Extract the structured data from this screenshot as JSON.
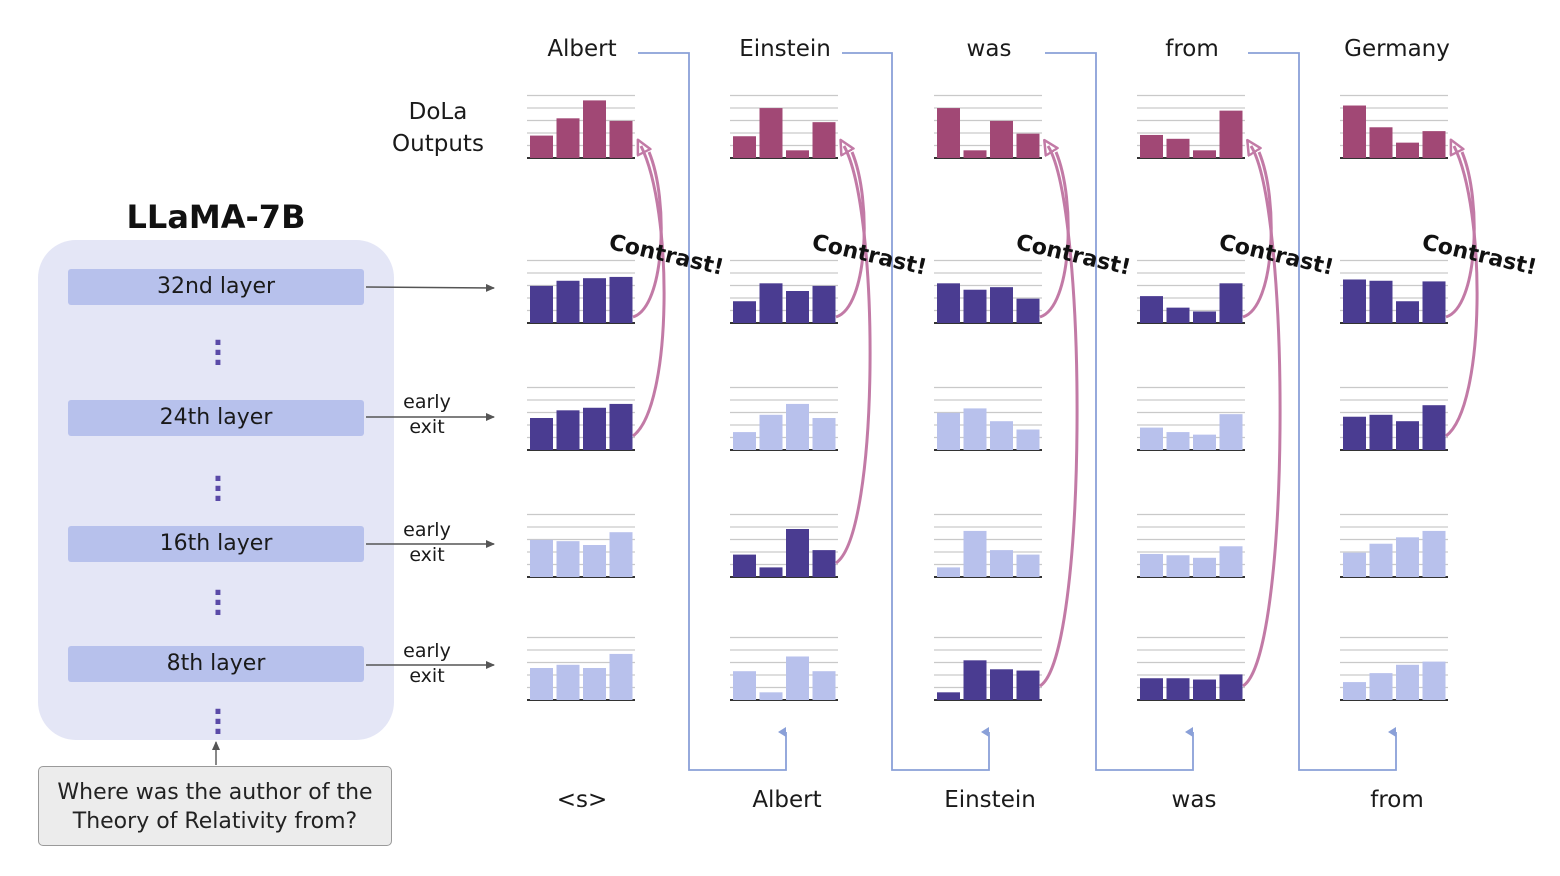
{
  "model": {
    "title": "LLaMA-7B",
    "layers": [
      "32nd layer",
      "24th layer",
      "16th layer",
      "8th layer"
    ]
  },
  "question": {
    "line1": "Where was the author of the",
    "line2": "Theory of Relativity from?"
  },
  "early_exit_label": {
    "line1": "early",
    "line2": "exit"
  },
  "dola_label": {
    "line1": "DoLa",
    "line2": "Outputs"
  },
  "output_tokens": [
    "Albert",
    "Einstein",
    "was",
    "from",
    "Germany"
  ],
  "input_tokens": [
    "<s>",
    "Albert",
    "Einstein",
    "was",
    "from"
  ],
  "contrast_label": "Contrast!",
  "colors": {
    "output_bar": "#a14875",
    "mature_bar": "#4a3c91",
    "premature_selected_bar": "#4a3c91",
    "faded_bar": "#b8c1ec",
    "arrow": "#c27aa6",
    "panel": "#e4e6f6",
    "layer_box": "#b7c1ec"
  },
  "chart_data": {
    "type": "bar",
    "note_rows": [
      "DoLa output",
      "32nd layer",
      "24th layer",
      "16th layer",
      "8th layer"
    ],
    "columns": [
      {
        "token": "Albert",
        "contrast_from_layer": "24th layer",
        "rows": {
          "output": [
            0.35,
            0.62,
            0.9,
            0.58
          ],
          "layer32": [
            0.58,
            0.66,
            0.7,
            0.72
          ],
          "layer24": [
            0.5,
            0.62,
            0.66,
            0.72
          ],
          "layer16": [
            0.58,
            0.56,
            0.5,
            0.7
          ],
          "layer8": [
            0.5,
            0.55,
            0.5,
            0.72
          ]
        }
      },
      {
        "token": "Einstein",
        "contrast_from_layer": "16th layer",
        "rows": {
          "output": [
            0.34,
            0.78,
            0.12,
            0.56
          ],
          "layer32": [
            0.34,
            0.62,
            0.5,
            0.58
          ],
          "layer24": [
            0.28,
            0.55,
            0.72,
            0.5
          ],
          "layer16": [
            0.35,
            0.15,
            0.75,
            0.42
          ],
          "layer8": [
            0.45,
            0.12,
            0.68,
            0.45
          ]
        }
      },
      {
        "token": "was",
        "contrast_from_layer": "8th layer",
        "rows": {
          "output": [
            0.78,
            0.12,
            0.58,
            0.38
          ],
          "layer32": [
            0.62,
            0.52,
            0.56,
            0.38
          ],
          "layer24": [
            0.58,
            0.65,
            0.45,
            0.32
          ],
          "layer16": [
            0.15,
            0.72,
            0.42,
            0.35
          ],
          "layer8": [
            0.12,
            0.62,
            0.48,
            0.46
          ]
        }
      },
      {
        "token": "from",
        "contrast_from_layer": "8th layer",
        "rows": {
          "output": [
            0.36,
            0.3,
            0.12,
            0.74
          ],
          "layer32": [
            0.42,
            0.24,
            0.18,
            0.62
          ],
          "layer24": [
            0.35,
            0.28,
            0.24,
            0.56
          ],
          "layer16": [
            0.36,
            0.34,
            0.3,
            0.48
          ],
          "layer8": [
            0.34,
            0.34,
            0.32,
            0.4
          ]
        }
      },
      {
        "token": "Germany",
        "contrast_from_layer": "24th layer",
        "rows": {
          "output": [
            0.82,
            0.48,
            0.24,
            0.42
          ],
          "layer32": [
            0.68,
            0.66,
            0.34,
            0.65
          ],
          "layer24": [
            0.52,
            0.55,
            0.45,
            0.7
          ],
          "layer16": [
            0.38,
            0.52,
            0.62,
            0.72
          ],
          "layer8": [
            0.28,
            0.42,
            0.55,
            0.6
          ]
        }
      }
    ]
  }
}
